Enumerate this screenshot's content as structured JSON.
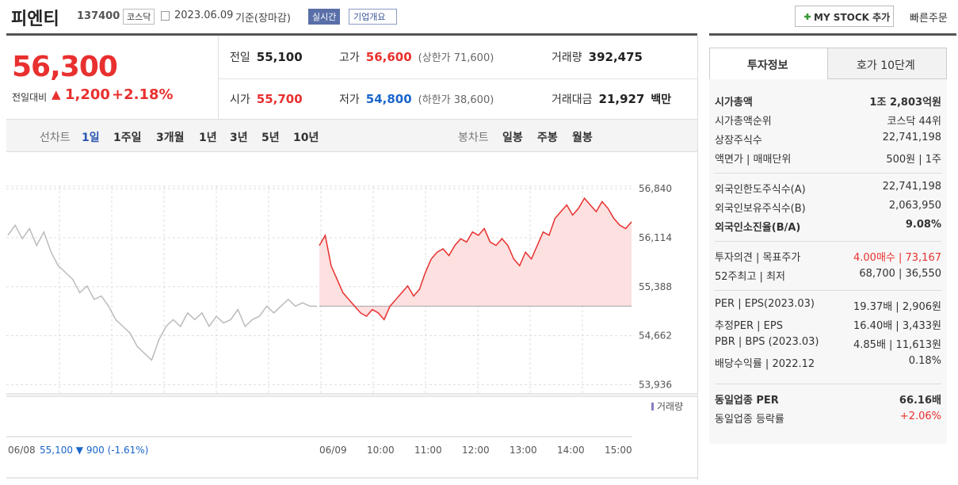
{
  "header": {
    "name": "피엔티",
    "code": "137400",
    "market": "코스닥",
    "date": "2023.06.09",
    "basis": "기준(장마감)",
    "realtime": "실시간",
    "overview": "기업개요",
    "mystock": "MY STOCK 추가",
    "quick_order": "빠른주문"
  },
  "price": {
    "current": "56,300",
    "change_label": "전일대비",
    "arrow": "▲",
    "change": "1,200",
    "change_pct": "+2.18%"
  },
  "summary": [
    {
      "label": "전일",
      "value": "55,100",
      "color": "#222"
    },
    {
      "label": "고가",
      "value": "56,600",
      "note": "(상한가 71,600)",
      "color": "#e8302f"
    },
    {
      "label": "거래량",
      "value": "392,475",
      "color": "#222"
    },
    {
      "label": "시가",
      "value": "55,700",
      "color": "#e8302f"
    },
    {
      "label": "저가",
      "value": "54,800",
      "note": "(하한가 38,600)",
      "color": "#1a66cc"
    },
    {
      "label": "거래대금",
      "value": "21,927",
      "note": "백만",
      "color": "#222"
    }
  ],
  "tabs": {
    "line_label": "선차트",
    "line": [
      "1일",
      "1주일",
      "3개월",
      "1년",
      "3년",
      "5년",
      "10년"
    ],
    "candle_label": "봉차트",
    "candle": [
      "일봉",
      "주봉",
      "월봉"
    ]
  },
  "chart": {
    "type": "line",
    "ylim": [
      53800,
      57230
    ],
    "yticks": [
      {
        "value": 56840,
        "label": "56,840"
      },
      {
        "value": 56114,
        "label": "56,114"
      },
      {
        "value": 55388,
        "label": "55,388"
      },
      {
        "value": 54662,
        "label": "54,662"
      },
      {
        "value": 53936,
        "label": "53,936"
      }
    ],
    "base": 55100,
    "prev_day": {
      "color": "#bbbbbb",
      "values": [
        56150,
        56300,
        56100,
        56250,
        56000,
        56200,
        55900,
        55700,
        55600,
        55500,
        55300,
        55400,
        55200,
        55250,
        55100,
        54900,
        54800,
        54700,
        54500,
        54400,
        54300,
        54600,
        54800,
        54900,
        54800,
        55000,
        54900,
        55000,
        54800,
        54950,
        54850,
        54900,
        55050,
        54800,
        54900,
        54950,
        55100,
        55000,
        55100,
        55200,
        55100,
        55150,
        55100,
        55100
      ]
    },
    "today": {
      "color": "#e8302f",
      "values": [
        56000,
        56150,
        55700,
        55500,
        55300,
        55200,
        55100,
        55000,
        54950,
        55050,
        55000,
        54900,
        55100,
        55200,
        55300,
        55400,
        55250,
        55350,
        55600,
        55800,
        55900,
        55950,
        55850,
        56000,
        56100,
        56050,
        56200,
        56150,
        56250,
        56050,
        56000,
        56100,
        56000,
        55800,
        55700,
        55900,
        55800,
        56000,
        56200,
        56150,
        56400,
        56500,
        56600,
        56450,
        56550,
        56700,
        56600,
        56500,
        56650,
        56550,
        56400,
        56300,
        56250,
        56350
      ]
    },
    "xlabels": [
      "06/08",
      "06/09",
      "10:00",
      "11:00",
      "12:00",
      "13:00",
      "14:00",
      "15:00"
    ],
    "footer": "55,100 ▼ 900 (-1.61%)",
    "volume_label": "거래량"
  },
  "info": {
    "tabs": [
      "투자정보",
      "호가 10단계"
    ],
    "groups": [
      {
        "rows": [
          {
            "label": "시가총액",
            "value": "1조 2,803억원"
          },
          {
            "label": "시가총액순위",
            "value": "코스닥 44위"
          },
          {
            "label": "상장주식수",
            "value": "22,741,198"
          },
          {
            "label": "액면가 | 매매단위",
            "value": "500원 | 1주"
          }
        ]
      },
      {
        "rows": [
          {
            "label": "외국인한도주식수(A)",
            "value": "22,741,198"
          },
          {
            "label": "외국인보유주식수(B)",
            "value": "2,063,950"
          },
          {
            "label": "외국인소진율(B/A)",
            "value": "9.08%"
          }
        ]
      },
      {
        "rows": [
          {
            "label": "투자의견 | 목표주가",
            "value": "4.00매수 | 73,167"
          },
          {
            "label": "52주최고 | 최저",
            "value": "68,700 | 36,550"
          }
        ]
      },
      {
        "rows": [
          {
            "label": "PER | EPS(2023.03)",
            "value": "19.37배 | 2,906원"
          },
          {
            "label": "추정PER | EPS",
            "value": "16.40배 | 3,433원"
          },
          {
            "label": "PBR | BPS (2023.03)",
            "value": "4.85배 | 11,613원"
          },
          {
            "label": "배당수익률 | 2022.12",
            "value": "0.18%"
          }
        ]
      },
      {
        "rows": [
          {
            "label": "동일업종 PER",
            "value": "66.16배"
          },
          {
            "label": "동일업종 등락률",
            "value": "+2.06%"
          }
        ]
      }
    ]
  }
}
